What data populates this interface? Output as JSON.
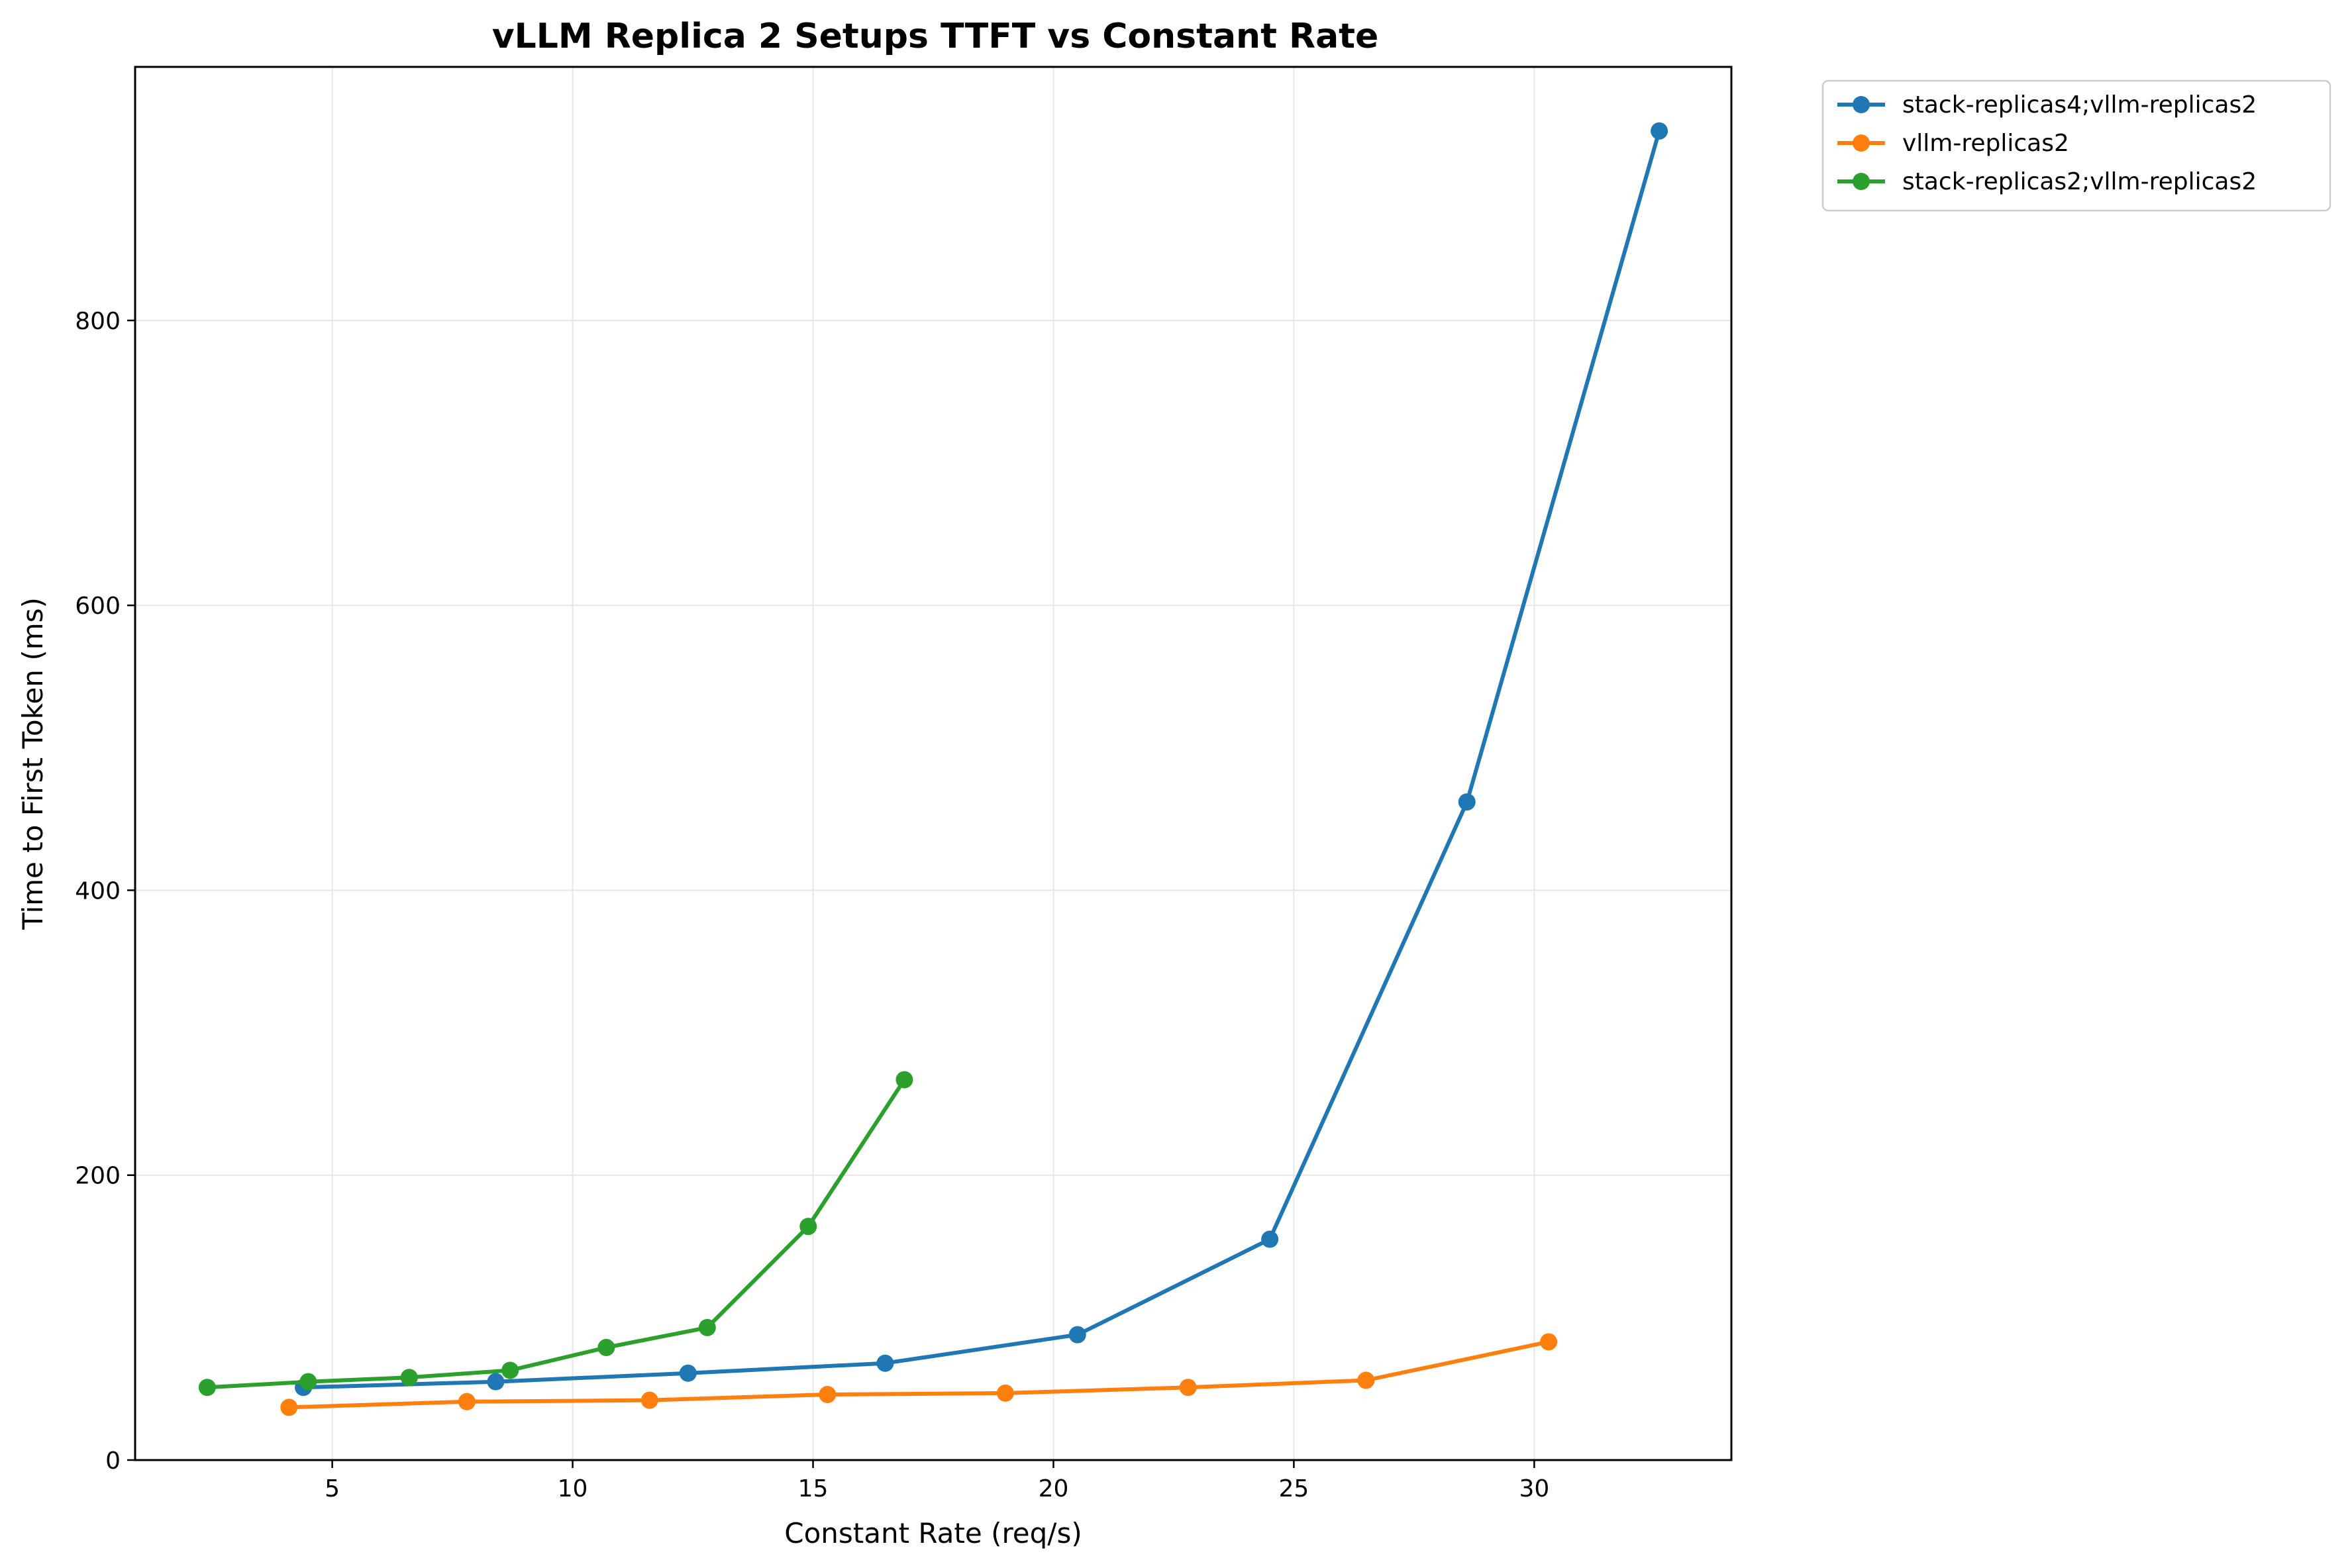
{
  "chart_data": {
    "type": "line",
    "title": "vLLM Replica 2 Setups TTFT vs Constant Rate",
    "xlabel": "Constant Rate (req/s)",
    "ylabel": "Time to First Token (ms)",
    "xlim": [
      0.9,
      34.1
    ],
    "ylim": [
      0,
      978
    ],
    "xticks": [
      5,
      10,
      15,
      20,
      25,
      30
    ],
    "yticks": [
      0,
      200,
      400,
      600,
      800
    ],
    "grid": true,
    "legend_position": "outside-top-right",
    "series": [
      {
        "name": "stack-replicas4;vllm-replicas2",
        "color": "#1f77b4",
        "x": [
          4.4,
          8.4,
          12.4,
          16.5,
          20.5,
          24.5,
          28.6,
          32.6
        ],
        "y": [
          51,
          55,
          61,
          68,
          88,
          155,
          462,
          933
        ]
      },
      {
        "name": "vllm-replicas2",
        "color": "#ff7f0e",
        "x": [
          4.1,
          7.8,
          11.6,
          15.3,
          19.0,
          22.8,
          26.5,
          30.3
        ],
        "y": [
          37,
          41,
          42,
          46,
          47,
          51,
          56,
          83
        ]
      },
      {
        "name": "stack-replicas2;vllm-replicas2",
        "color": "#2ca02c",
        "x": [
          2.4,
          4.5,
          6.6,
          8.7,
          10.7,
          12.8,
          14.9,
          16.9
        ],
        "y": [
          51,
          55,
          58,
          63,
          79,
          93,
          164,
          267
        ]
      }
    ]
  }
}
